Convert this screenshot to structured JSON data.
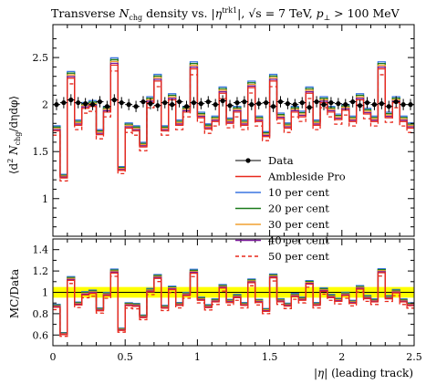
{
  "chart_data": [
    {
      "type": "line",
      "panel": "main",
      "title": "Transverse N_chg density vs. |η^trk1|, √s = 7 TeV, p⊥ > 100 MeV",
      "title_parts": {
        "a": "Transverse ",
        "n": "N",
        "n_sub": "chg",
        "b": " density vs. |",
        "eta": "η",
        "eta_sup": "trk1",
        "c": "|, ",
        "s": "√s",
        "d": " = 7 TeV, ",
        "p": "p",
        "p_sub": "⊥",
        "e": " > 100 MeV"
      },
      "ylabel": "⟨d² N_chg/dη dφ⟩",
      "ylabel_parts": {
        "a": "⟨d",
        "sup": "2",
        "b": " N",
        "sub": "chg",
        "c": "/dηdφ⟩"
      },
      "xlabel": "",
      "xlim": [
        0,
        2.5
      ],
      "ylim": [
        0.6,
        2.85
      ],
      "yticks": [
        1,
        1.5,
        2,
        2.5
      ],
      "ytick_labels": [
        "1",
        "1.5",
        "2",
        "2.5"
      ],
      "legend_position": "center-right",
      "bin_edges": [
        0,
        0.05,
        0.1,
        0.15,
        0.2,
        0.25,
        0.3,
        0.35,
        0.4,
        0.45,
        0.5,
        0.55,
        0.6,
        0.65,
        0.7,
        0.75,
        0.8,
        0.85,
        0.9,
        0.95,
        1.0,
        1.05,
        1.1,
        1.15,
        1.2,
        1.25,
        1.3,
        1.35,
        1.4,
        1.45,
        1.5,
        1.55,
        1.6,
        1.65,
        1.7,
        1.75,
        1.8,
        1.85,
        1.9,
        1.95,
        2.0,
        2.05,
        2.1,
        2.15,
        2.2,
        2.25,
        2.3,
        2.35,
        2.4,
        2.45,
        2.5
      ],
      "data_points": {
        "name": "Data",
        "x": [
          0.025,
          0.075,
          0.125,
          0.175,
          0.225,
          0.275,
          0.325,
          0.375,
          0.425,
          0.475,
          0.525,
          0.575,
          0.625,
          0.675,
          0.725,
          0.775,
          0.825,
          0.875,
          0.925,
          0.975,
          1.025,
          1.075,
          1.125,
          1.175,
          1.225,
          1.275,
          1.325,
          1.375,
          1.425,
          1.475,
          1.525,
          1.575,
          1.625,
          1.675,
          1.725,
          1.775,
          1.825,
          1.875,
          1.925,
          1.975,
          2.025,
          2.075,
          2.125,
          2.175,
          2.225,
          2.275,
          2.325,
          2.375,
          2.425,
          2.475
        ],
        "y": [
          2.0,
          2.02,
          2.05,
          2.02,
          2.01,
          2.0,
          2.03,
          1.98,
          2.05,
          2.02,
          2.0,
          1.98,
          2.03,
          2.01,
          1.99,
          2.02,
          2.0,
          2.03,
          1.98,
          2.02,
          2.01,
          2.03,
          2.0,
          2.04,
          1.99,
          2.02,
          2.03,
          2.0,
          2.01,
          2.02,
          1.98,
          2.03,
          2.01,
          2.0,
          2.02,
          1.97,
          2.03,
          2.0,
          2.02,
          2.01,
          2.0,
          2.03,
          1.99,
          2.02,
          2.0,
          2.01,
          1.98,
          2.03,
          2.0,
          2.0
        ],
        "yerr": [
          0.06,
          0.06,
          0.06,
          0.06,
          0.06,
          0.06,
          0.06,
          0.06,
          0.06,
          0.06,
          0.06,
          0.06,
          0.06,
          0.06,
          0.06,
          0.06,
          0.06,
          0.06,
          0.06,
          0.06,
          0.06,
          0.06,
          0.06,
          0.06,
          0.06,
          0.06,
          0.06,
          0.06,
          0.06,
          0.06,
          0.06,
          0.06,
          0.06,
          0.06,
          0.06,
          0.06,
          0.06,
          0.06,
          0.06,
          0.06,
          0.06,
          0.06,
          0.06,
          0.06,
          0.06,
          0.06,
          0.06,
          0.06,
          0.06,
          0.06
        ]
      },
      "series": [
        {
          "name": "Ambleside Pro",
          "color": "#e8291c",
          "dash": false,
          "shift": 0.0
        },
        {
          "name": "10 per cent",
          "color": "#3a75e0",
          "dash": false,
          "shift": 0.06
        },
        {
          "name": "20 per cent",
          "color": "#1a7a1a",
          "dash": false,
          "shift": 0.045
        },
        {
          "name": "30 per cent",
          "color": "#f0a030",
          "dash": false,
          "shift": 0.03
        },
        {
          "name": "40 per cent",
          "color": "#7a1a9a",
          "dash": false,
          "shift": 0.015
        },
        {
          "name": "50 per cent",
          "color": "#e8291c",
          "dash": true,
          "shift": -0.05
        }
      ],
      "mc_base_values": [
        1.72,
        1.22,
        2.28,
        1.78,
        1.96,
        1.98,
        1.68,
        1.92,
        2.42,
        1.3,
        1.75,
        1.72,
        1.55,
        2.02,
        2.25,
        1.72,
        2.05,
        1.78,
        1.92,
        2.38,
        1.86,
        1.74,
        1.82,
        2.12,
        1.8,
        1.92,
        1.78,
        2.18,
        1.82,
        1.66,
        2.25,
        1.85,
        1.75,
        1.92,
        1.87,
        2.12,
        1.78,
        2.02,
        1.92,
        1.84,
        1.94,
        1.82,
        2.05,
        1.9,
        1.82,
        2.38,
        1.86,
        2.02,
        1.82,
        1.75
      ]
    },
    {
      "type": "line",
      "panel": "ratio",
      "ylabel": "MC/Data",
      "xlabel": "|η| (leading track)",
      "xlabel_parts": {
        "a": "|",
        "eta": "η",
        "b": "| (leading track)"
      },
      "xlim": [
        0,
        2.5
      ],
      "ylim": [
        0.5,
        1.5
      ],
      "yticks": [
        0.6,
        0.8,
        1,
        1.2,
        1.4
      ],
      "ytick_labels": [
        "0.6",
        "0.8",
        "1",
        "1.2",
        "1.4"
      ],
      "xticks": [
        0,
        0.5,
        1,
        1.5,
        2,
        2.5
      ],
      "xtick_labels": [
        "0",
        "0.5",
        "1",
        "1.5",
        "2",
        "2.5"
      ],
      "data_band": {
        "color": "#ffff00",
        "half_width": 0.05
      }
    }
  ]
}
